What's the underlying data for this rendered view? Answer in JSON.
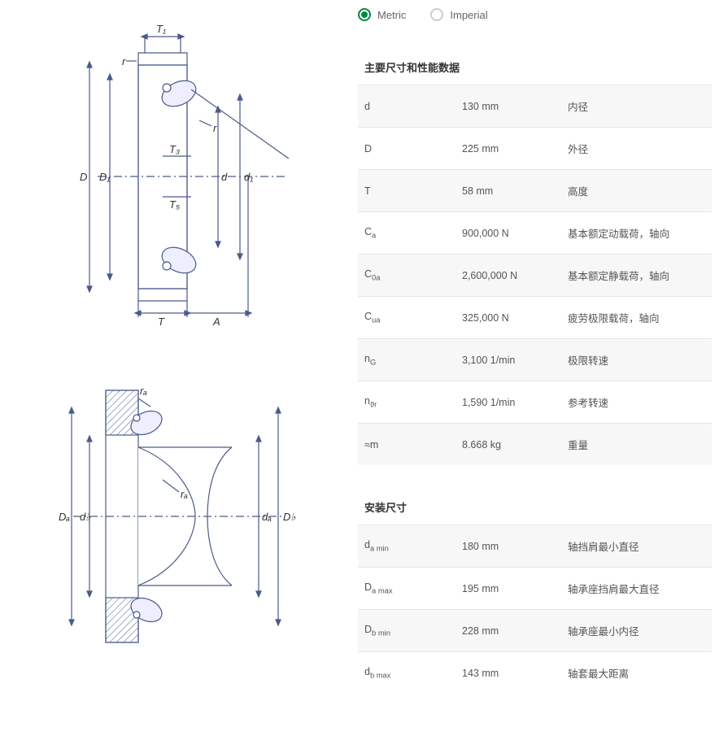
{
  "units": {
    "metric_label": "Metric",
    "imperial_label": "Imperial",
    "selected": "metric"
  },
  "sections": [
    {
      "title": "主要尺寸和性能数据",
      "rows": [
        {
          "symbol_html": "d",
          "value": "130 mm",
          "desc": "内径"
        },
        {
          "symbol_html": "D",
          "value": "225 mm",
          "desc": "外径"
        },
        {
          "symbol_html": "T",
          "value": "58 mm",
          "desc": "高度"
        },
        {
          "symbol_html": "C<sub>a</sub>",
          "value": "900,000 N",
          "desc": "基本额定动载荷，轴向"
        },
        {
          "symbol_html": "C<sub>0a</sub>",
          "value": "2,600,000 N",
          "desc": "基本额定静载荷，轴向"
        },
        {
          "symbol_html": "C<sub>ua</sub>",
          "value": "325,000 N",
          "desc": "疲劳极限载荷，轴向"
        },
        {
          "symbol_html": "n<sub>G</sub>",
          "value": "3,100 1/min",
          "desc": "极限转速"
        },
        {
          "symbol_html": "n<sub>ϑr</sub>",
          "value": "1,590 1/min",
          "desc": "参考转速"
        },
        {
          "symbol_html": "≈m",
          "value": "8.668 kg",
          "desc": "重量"
        }
      ]
    },
    {
      "title": "安装尺寸",
      "rows": [
        {
          "symbol_html": "d<sub>a min</sub>",
          "value": "180 mm",
          "desc": "轴挡肩最小直径"
        },
        {
          "symbol_html": "D<sub>a max</sub>",
          "value": "195 mm",
          "desc": "轴承座挡肩最大直径"
        },
        {
          "symbol_html": "D<sub>b min</sub>",
          "value": "228 mm",
          "desc": "轴承座最小内径"
        },
        {
          "symbol_html": "d<sub>b max</sub>",
          "value": "143 mm",
          "desc": "轴套最大距离"
        }
      ]
    }
  ],
  "diagram_labels": {
    "top": {
      "T1": "T₁",
      "r1": "r",
      "r2": "r",
      "T3": "T₃",
      "T5": "T₅",
      "D": "D",
      "D1": "D₁",
      "d": "d",
      "d1": "d₁",
      "T": "T",
      "A": "A"
    },
    "bottom": {
      "ra1": "rₐ",
      "ra2": "rₐ",
      "Da": "Dₐ",
      "db": "d♭",
      "da": "dₐ",
      "Db": "D♭"
    }
  },
  "colors": {
    "accent": "#00893d",
    "line": "#4a5a8a",
    "grid": "#e5e5e5",
    "row_alt": "#f7f7f7",
    "text": "#555555"
  }
}
